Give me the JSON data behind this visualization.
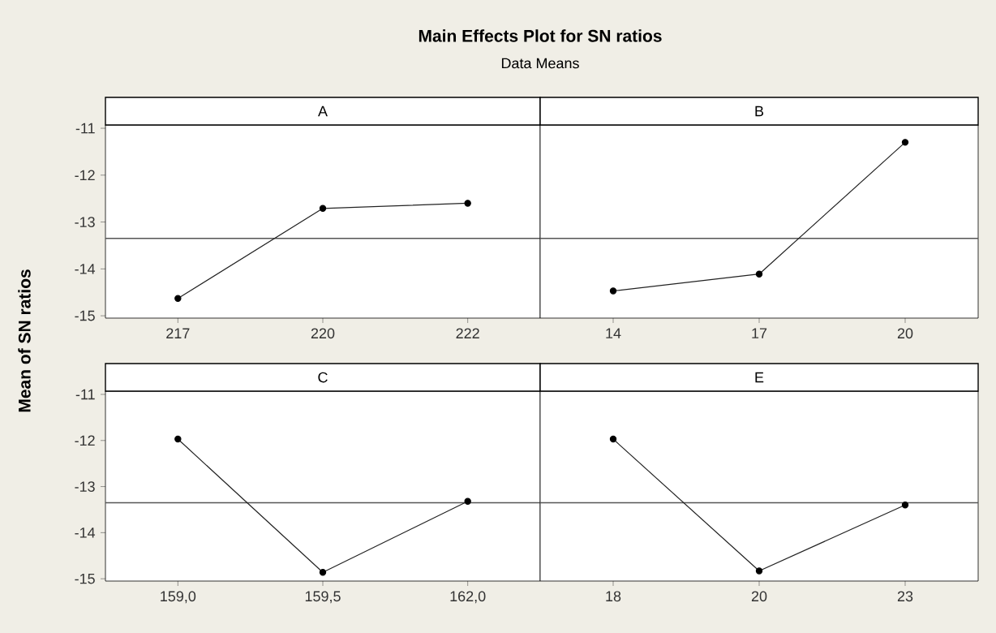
{
  "chart_data": [
    {
      "type": "line",
      "title": "Main Effects Plot for SN ratios",
      "subtitle": "Data Means",
      "xlabel": "A",
      "ylabel": "Mean of SN ratios",
      "categories": [
        "217",
        "220",
        "222"
      ],
      "values": [
        -14.63,
        -12.71,
        -12.6
      ],
      "color": "#222222",
      "marker": "circle",
      "line_style": "solid",
      "ylim": [
        -15.05,
        -10.93
      ],
      "yticks": [
        -15,
        -14,
        -13,
        -12,
        -11
      ],
      "ref_lines": [
        {
          "axis": "y",
          "value": -13.35,
          "color": "#555555"
        }
      ]
    },
    {
      "type": "line",
      "xlabel": "B",
      "categories": [
        "14",
        "17",
        "20"
      ],
      "values": [
        -14.47,
        -14.11,
        -11.3
      ],
      "color": "#222222",
      "marker": "circle",
      "line_style": "solid",
      "ylim": [
        -15.05,
        -10.93
      ],
      "yticks": [
        -15,
        -14,
        -13,
        -12,
        -11
      ],
      "tick_labels": "x",
      "ref_lines": [
        {
          "axis": "y",
          "value": -13.35,
          "color": "#555555"
        }
      ]
    },
    {
      "type": "line",
      "xlabel": "C",
      "categories": [
        "159,0",
        "159,5",
        "162,0"
      ],
      "values": [
        -11.97,
        -14.86,
        -13.32
      ],
      "color": "#222222",
      "marker": "circle",
      "line_style": "solid",
      "ylim": [
        -15.05,
        -10.93
      ],
      "yticks": [
        -15,
        -14,
        -13,
        -12,
        -11
      ],
      "ref_lines": [
        {
          "axis": "y",
          "value": -13.35,
          "color": "#555555"
        }
      ]
    },
    {
      "type": "line",
      "xlabel": "E",
      "categories": [
        "18",
        "20",
        "23"
      ],
      "values": [
        -11.97,
        -14.83,
        -13.4
      ],
      "color": "#222222",
      "marker": "circle",
      "line_style": "solid",
      "ylim": [
        -15.05,
        -10.93
      ],
      "yticks": [
        -15,
        -14,
        -13,
        -12,
        -11
      ],
      "tick_labels": "x",
      "ref_lines": [
        {
          "axis": "y",
          "value": -13.35,
          "color": "#555555"
        }
      ]
    }
  ]
}
